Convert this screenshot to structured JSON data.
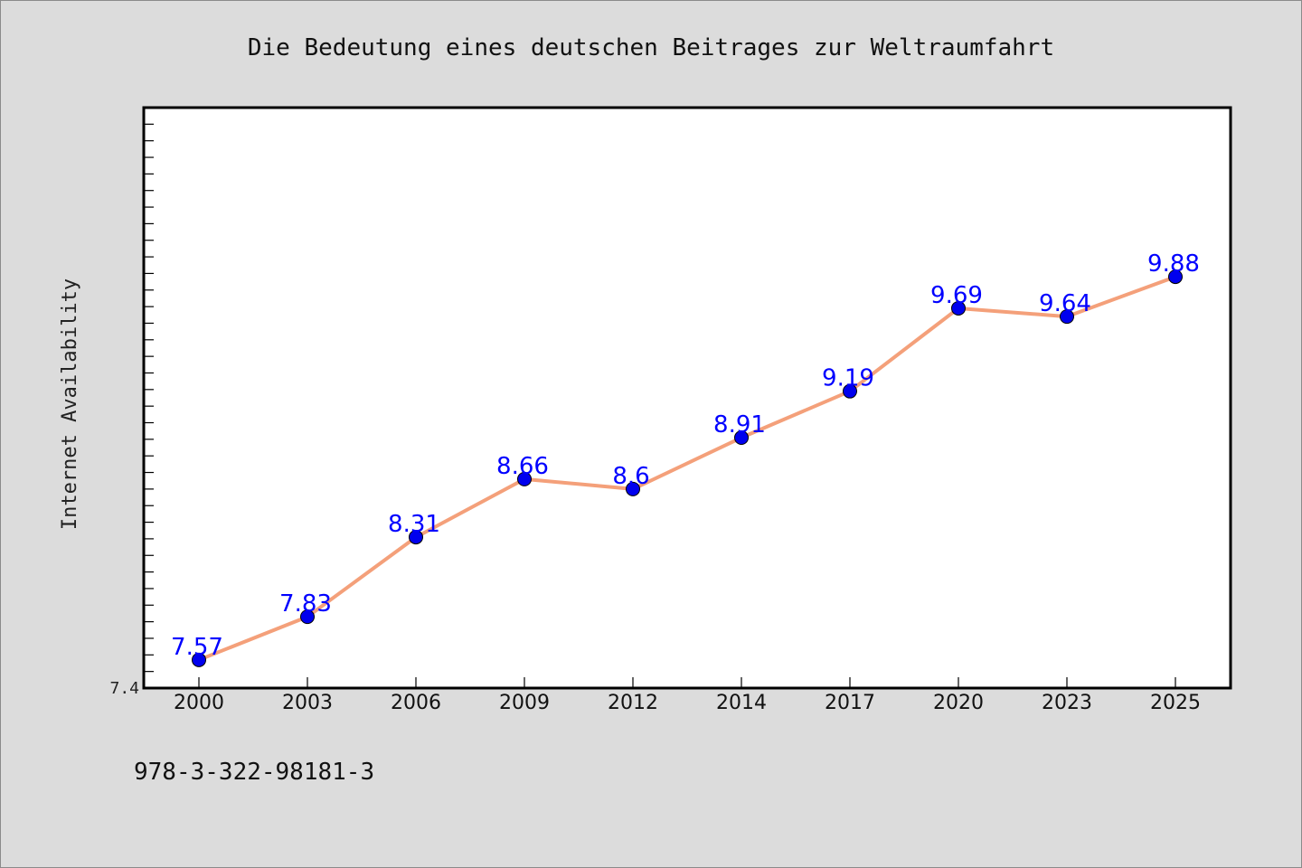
{
  "chart_data": {
    "type": "line",
    "title": "Die Bedeutung eines deutschen Beitrages zur Weltraumfahrt",
    "xlabel": "",
    "ylabel": "Internet Availability",
    "categories": [
      "2000",
      "2003",
      "2006",
      "2009",
      "2012",
      "2014",
      "2017",
      "2020",
      "2023",
      "2025"
    ],
    "series": [
      {
        "values": [
          7.57,
          7.83,
          8.31,
          8.66,
          8.6,
          8.91,
          9.19,
          9.69,
          9.64,
          9.88
        ],
        "labels": [
          "7.57",
          "7.83",
          "8.31",
          "8.66",
          "8.6",
          "8.91",
          "9.19",
          "9.69",
          "9.64",
          "9.88"
        ]
      }
    ],
    "ylim": [
      7.4,
      10.9
    ],
    "yticks_labeled": [
      "7.4"
    ],
    "grid": false,
    "line_color": "#f4a07a",
    "marker_color": "#0000ee",
    "label_color": "#0000ff"
  },
  "footer": {
    "isbn": "978-3-322-98181-3"
  }
}
